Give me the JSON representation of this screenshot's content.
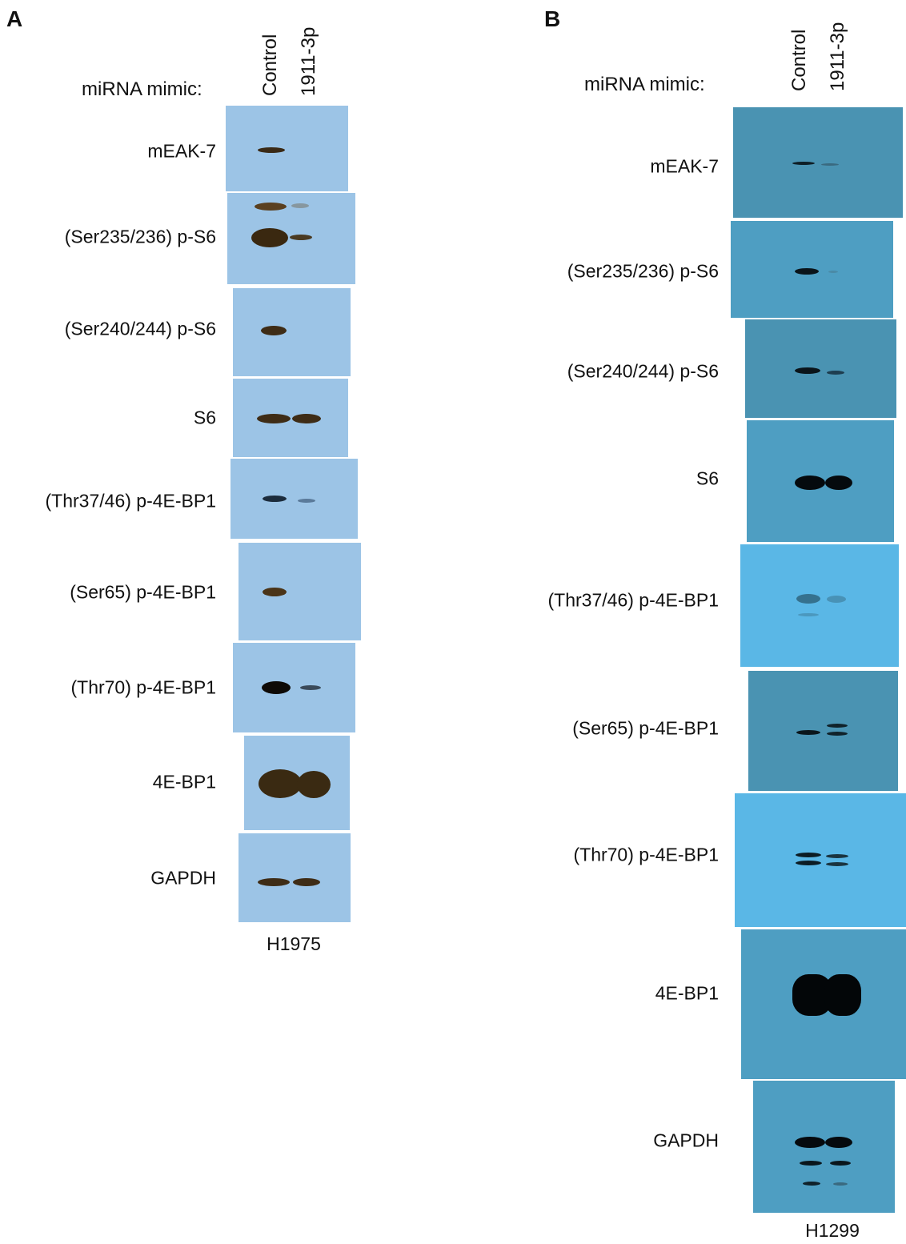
{
  "panels": [
    {
      "letter": "A",
      "mimic_label": "miRNA mimic:",
      "lanes": [
        "Control",
        "1911-3p"
      ],
      "cell_line": "H1975",
      "rows": [
        "mEAK-7",
        "(Ser235/236) p-S6",
        "(Ser240/244) p-S6",
        "S6",
        "(Thr37/46) p-4E-BP1",
        "(Ser65) p-4E-BP1",
        "(Thr70) p-4E-BP1",
        "4E-BP1",
        "GAPDH"
      ]
    },
    {
      "letter": "B",
      "mimic_label": "miRNA mimic:",
      "lanes": [
        "Control",
        "1911-3p"
      ],
      "cell_line": "H1299",
      "rows": [
        "mEAK-7",
        "(Ser235/236) p-S6",
        "(Ser240/244) p-S6",
        "S6",
        "(Thr37/46) p-4E-BP1",
        "(Ser65) p-4E-BP1",
        "(Thr70) p-4E-BP1",
        "4E-BP1",
        "GAPDH"
      ]
    }
  ]
}
